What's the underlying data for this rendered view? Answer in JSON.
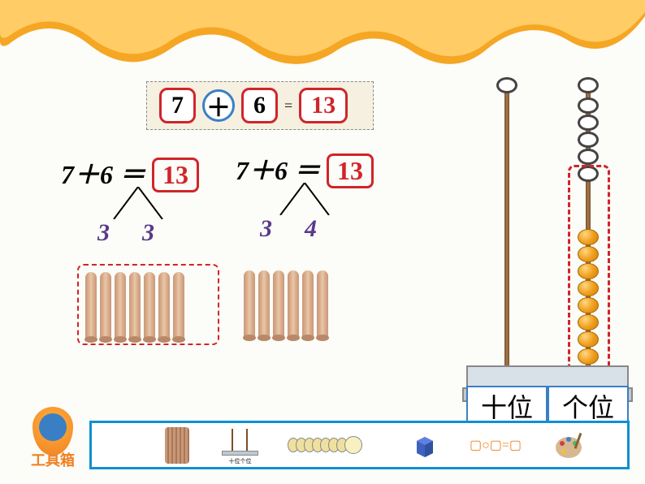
{
  "main_equation": {
    "operand1": "7",
    "operator": "＋",
    "operand2": "6",
    "equals": "=",
    "result": "13"
  },
  "decomp1": {
    "expression": "7＋6 ＝",
    "result": "13",
    "branch_left": "3",
    "branch_right": "3"
  },
  "decomp2": {
    "expression": "7＋6 ＝",
    "result": "13",
    "branch_left": "3",
    "branch_right": "4"
  },
  "sticks": {
    "group1_count": 7,
    "group2_count": 6,
    "stick_color": "#d0a080"
  },
  "abacus": {
    "tens_label": "十位",
    "ones_label": "个位",
    "tens_beads": 0,
    "ones_white_beads": 5,
    "ones_orange_beads": 8,
    "pole_color": "#8a6038",
    "bead_orange_color": "#f0a020"
  },
  "toolbox": {
    "label": "工具箱",
    "formula_template": "▢○▢=▢",
    "mini_tens": "十位",
    "mini_ones": "个位"
  },
  "colors": {
    "accent_red": "#d0252a",
    "accent_blue": "#3a7fc4",
    "orange": "#f08020",
    "purple": "#5a3a8a",
    "toolbox_border": "#1090d0"
  }
}
